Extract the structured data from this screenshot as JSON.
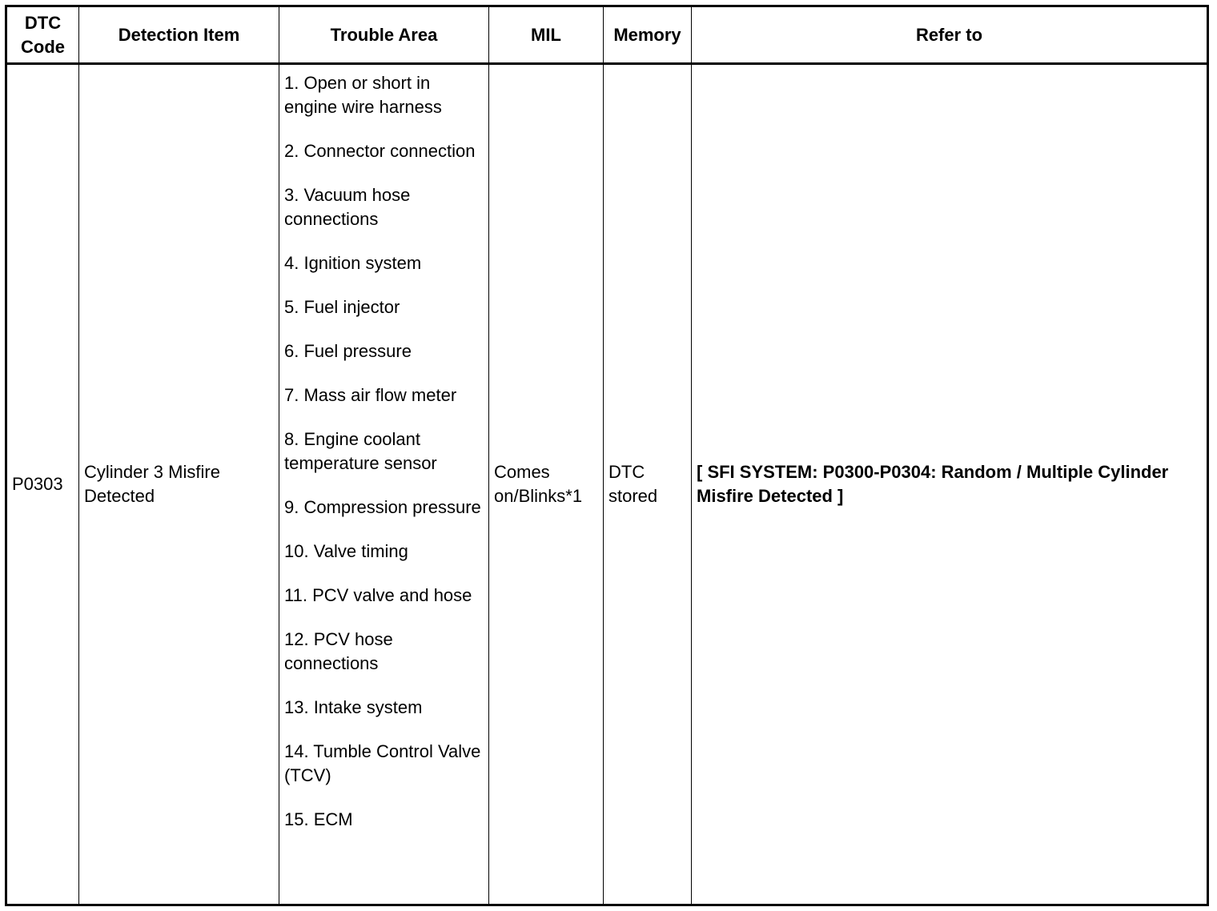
{
  "headers": {
    "dtc_code": "DTC Code",
    "detection_item": "Detection Item",
    "trouble_area": "Trouble Area",
    "mil": "MIL",
    "memory": "Memory",
    "refer_to": "Refer to"
  },
  "row": {
    "dtc_code": "P0303",
    "detection_item": "Cylinder 3 Misfire Detected",
    "trouble_areas": [
      "1. Open or short in engine wire harness",
      "2. Connector connection",
      "3. Vacuum hose connections",
      "4. Ignition system",
      "5. Fuel injector",
      "6. Fuel pressure",
      "7. Mass air flow meter",
      "8. Engine coolant temperature sensor",
      "9. Compression pressure",
      "10. Valve timing",
      "11. PCV valve and hose",
      "12. PCV hose connections",
      "13. Intake system",
      "14. Tumble Control Valve (TCV)",
      "15. ECM"
    ],
    "mil": "Comes on/Blinks*1",
    "memory": "DTC stored",
    "refer_to": "[ SFI SYSTEM: P0300-P0304: Random / Multiple Cylinder Misfire Detected ]"
  }
}
